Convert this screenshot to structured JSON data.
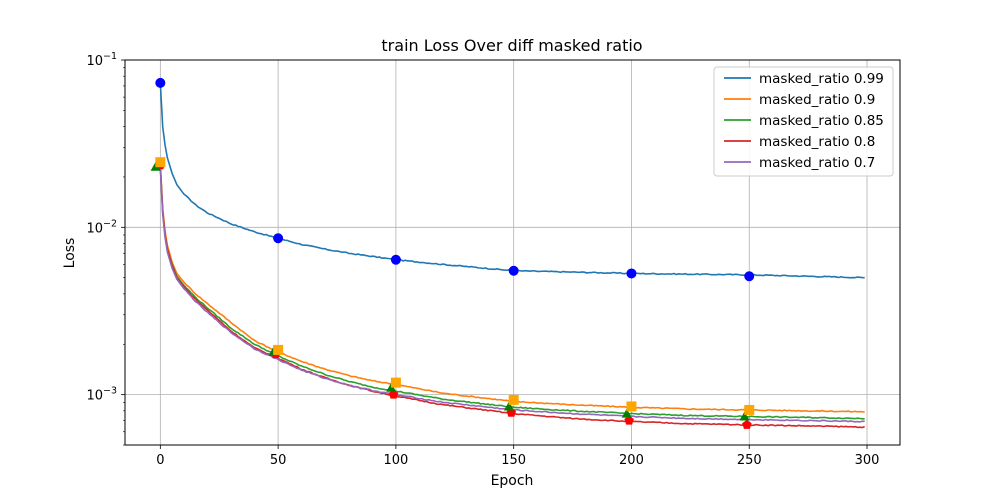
{
  "chart_data": {
    "type": "line",
    "title": "train Loss Over diff masked ratio",
    "xlabel": "Epoch",
    "ylabel": "Loss",
    "xlim": [
      -15,
      314
    ],
    "ylim": [
      0.0005,
      0.1
    ],
    "yscale": "log",
    "grid": true,
    "legend_position": "top-right",
    "x_ticks": [
      0,
      50,
      100,
      150,
      200,
      250,
      300
    ],
    "x_tick_labels": [
      "0",
      "50",
      "100",
      "150",
      "200",
      "250",
      "300"
    ],
    "y_ticks": [
      0.001,
      0.01,
      0.1
    ],
    "y_tick_labels": [
      {
        "base": "10",
        "exp": "−3"
      },
      {
        "base": "10",
        "exp": "−2"
      },
      {
        "base": "10",
        "exp": "−1"
      }
    ],
    "marker_epochs": [
      0,
      50,
      100,
      150,
      200,
      250
    ],
    "series": [
      {
        "name": "masked_ratio 0.99",
        "color": "#1f77b4",
        "marker": "circle",
        "marker_color": "#0000ff",
        "start": 0.073,
        "curve": [
          [
            0,
            0.073
          ],
          [
            1,
            0.04
          ],
          [
            2,
            0.031
          ],
          [
            3,
            0.026
          ],
          [
            5,
            0.021
          ],
          [
            7,
            0.018
          ],
          [
            10,
            0.0158
          ],
          [
            15,
            0.0136
          ],
          [
            20,
            0.0122
          ],
          [
            30,
            0.0105
          ],
          [
            40,
            0.0094
          ],
          [
            50,
            0.0086
          ],
          [
            60,
            0.0079
          ],
          [
            70,
            0.0074
          ],
          [
            80,
            0.007
          ],
          [
            90,
            0.0067
          ],
          [
            100,
            0.0064
          ],
          [
            120,
            0.006
          ],
          [
            150,
            0.0055
          ],
          [
            175,
            0.0054
          ],
          [
            200,
            0.0053
          ],
          [
            225,
            0.00525
          ],
          [
            250,
            0.0052
          ],
          [
            275,
            0.0051
          ],
          [
            299,
            0.005
          ]
        ],
        "marker_values": [
          0.073,
          0.0086,
          0.0064,
          0.0055,
          0.0053,
          0.0051
        ]
      },
      {
        "name": "masked_ratio 0.9",
        "color": "#ff7f0e",
        "marker": "square",
        "marker_color": "#ffa500",
        "curve": [
          [
            0,
            0.024
          ],
          [
            1,
            0.013
          ],
          [
            2,
            0.0095
          ],
          [
            3,
            0.0078
          ],
          [
            5,
            0.0062
          ],
          [
            7,
            0.0053
          ],
          [
            10,
            0.0047
          ],
          [
            15,
            0.004
          ],
          [
            20,
            0.0035
          ],
          [
            30,
            0.0027
          ],
          [
            40,
            0.0021
          ],
          [
            50,
            0.0018
          ],
          [
            60,
            0.00158
          ],
          [
            70,
            0.00142
          ],
          [
            80,
            0.0013
          ],
          [
            90,
            0.00121
          ],
          [
            100,
            0.00115
          ],
          [
            120,
            0.00102
          ],
          [
            150,
            0.00091
          ],
          [
            175,
            0.00087
          ],
          [
            200,
            0.00084
          ],
          [
            225,
            0.00082
          ],
          [
            250,
            0.00081
          ],
          [
            275,
            0.0008
          ],
          [
            299,
            0.00079
          ]
        ],
        "marker_values": [
          0.0245,
          0.00185,
          0.00118,
          0.00093,
          0.00085,
          0.00081
        ]
      },
      {
        "name": "masked_ratio 0.85",
        "color": "#2ca02c",
        "marker": "triangle",
        "marker_color": "#008000",
        "curve": [
          [
            0,
            0.023
          ],
          [
            1,
            0.0125
          ],
          [
            2,
            0.009
          ],
          [
            3,
            0.0074
          ],
          [
            5,
            0.006
          ],
          [
            7,
            0.0051
          ],
          [
            10,
            0.0045
          ],
          [
            15,
            0.0038
          ],
          [
            20,
            0.0033
          ],
          [
            30,
            0.0025
          ],
          [
            40,
            0.002
          ],
          [
            50,
            0.0017
          ],
          [
            60,
            0.00148
          ],
          [
            70,
            0.00132
          ],
          [
            80,
            0.0012
          ],
          [
            90,
            0.00111
          ],
          [
            100,
            0.00105
          ],
          [
            120,
            0.00094
          ],
          [
            150,
            0.00084
          ],
          [
            175,
            0.0008
          ],
          [
            200,
            0.00077
          ],
          [
            225,
            0.00075
          ],
          [
            250,
            0.00074
          ],
          [
            275,
            0.00073
          ],
          [
            299,
            0.00072
          ]
        ],
        "marker_values": [
          0.023,
          0.0018,
          0.0011,
          0.00085,
          0.00077,
          0.00074
        ]
      },
      {
        "name": "masked_ratio 0.8",
        "color": "#d62728",
        "marker": "pentagon",
        "marker_color": "#ff0000",
        "curve": [
          [
            0,
            0.0235
          ],
          [
            1,
            0.0125
          ],
          [
            2,
            0.009
          ],
          [
            3,
            0.0074
          ],
          [
            5,
            0.0059
          ],
          [
            7,
            0.005
          ],
          [
            10,
            0.0044
          ],
          [
            15,
            0.0037
          ],
          [
            20,
            0.0032
          ],
          [
            30,
            0.0024
          ],
          [
            40,
            0.0019
          ],
          [
            50,
            0.00165
          ],
          [
            60,
            0.00142
          ],
          [
            70,
            0.00126
          ],
          [
            80,
            0.00114
          ],
          [
            90,
            0.00105
          ],
          [
            100,
            0.00098
          ],
          [
            120,
            0.00087
          ],
          [
            150,
            0.00077
          ],
          [
            175,
            0.00072
          ],
          [
            200,
            0.00069
          ],
          [
            225,
            0.00067
          ],
          [
            250,
            0.00066
          ],
          [
            275,
            0.00065
          ],
          [
            299,
            0.00064
          ]
        ],
        "marker_values": [
          0.0235,
          0.00175,
          0.001,
          0.00078,
          0.0007,
          0.00066
        ]
      },
      {
        "name": "masked_ratio 0.7",
        "color": "#9467bd",
        "marker": "none",
        "marker_color": "#9467bd",
        "curve": [
          [
            0,
            0.0225
          ],
          [
            1,
            0.012
          ],
          [
            2,
            0.0087
          ],
          [
            3,
            0.0071
          ],
          [
            5,
            0.0057
          ],
          [
            7,
            0.0049
          ],
          [
            10,
            0.0043
          ],
          [
            15,
            0.0036
          ],
          [
            20,
            0.0031
          ],
          [
            30,
            0.00235
          ],
          [
            40,
            0.00188
          ],
          [
            50,
            0.00162
          ],
          [
            60,
            0.0014
          ],
          [
            70,
            0.00125
          ],
          [
            80,
            0.00114
          ],
          [
            90,
            0.00106
          ],
          [
            100,
            0.001
          ],
          [
            120,
            0.0009
          ],
          [
            150,
            0.00081
          ],
          [
            175,
            0.00077
          ],
          [
            200,
            0.00074
          ],
          [
            225,
            0.00072
          ],
          [
            250,
            0.00071
          ],
          [
            275,
            0.0007
          ],
          [
            299,
            0.00069
          ]
        ],
        "marker_values": []
      }
    ]
  }
}
